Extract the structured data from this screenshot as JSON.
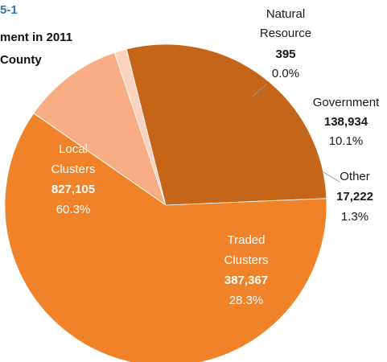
{
  "title": {
    "line1": "5-1",
    "line2": "ment in 2011",
    "line3": "County"
  },
  "colors": {
    "local": "#f0822a",
    "traded": "#c5651a",
    "natural": "#f6a86a",
    "government": "#f8ad84",
    "other": "#fbd2bf",
    "title_accent": "#2e74b5"
  },
  "chart_data": {
    "type": "pie",
    "slices": [
      {
        "name": "Natural Resource",
        "value": 395,
        "value_label": "395",
        "pct_label": "0.0%"
      },
      {
        "name": "Government",
        "value": 138934,
        "value_label": "138,934",
        "pct_label": "10.1%"
      },
      {
        "name": "Other",
        "value": 17222,
        "value_label": "17,222",
        "pct_label": "1.3%"
      },
      {
        "name": "Traded Clusters",
        "value": 387367,
        "value_label": "387,367",
        "pct_label": "28.3%"
      },
      {
        "name": "Local Clusters",
        "value": 827105,
        "value_label": "827,105",
        "pct_label": "60.3%"
      }
    ]
  }
}
